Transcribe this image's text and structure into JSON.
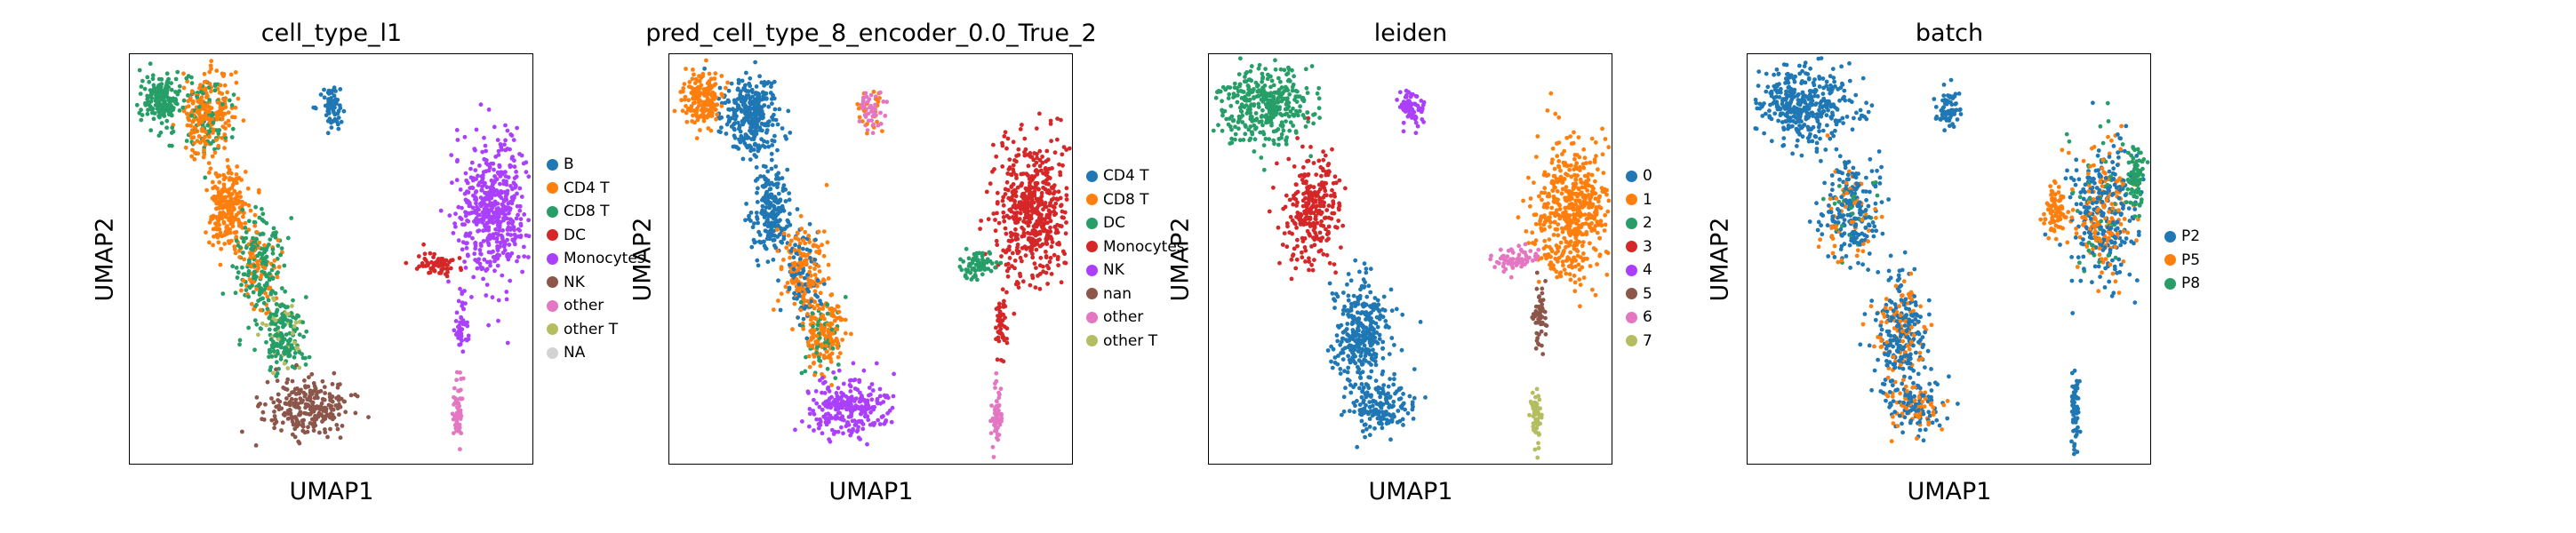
{
  "chart_data": [
    {
      "type": "scatter",
      "title": "cell_type_l1",
      "xlabel": "UMAP1",
      "ylabel": "UMAP2",
      "legend_placement": "right",
      "legend": [
        {
          "label": "B",
          "color": "#1f77b4"
        },
        {
          "label": "CD4 T",
          "color": "#ff7f0e"
        },
        {
          "label": "CD8 T",
          "color": "#279e68"
        },
        {
          "label": "DC",
          "color": "#d62728"
        },
        {
          "label": "Monocytes",
          "color": "#aa40fc"
        },
        {
          "label": "NK",
          "color": "#8c564b"
        },
        {
          "label": "other",
          "color": "#e377c2"
        },
        {
          "label": "other T",
          "color": "#b5bd61"
        },
        {
          "label": "NA",
          "color": "#d3d3d3"
        }
      ],
      "clusters": [
        {
          "cat": 1,
          "cx": 0.19,
          "cy": 0.15,
          "rx": 0.06,
          "ry": 0.1,
          "n": 320,
          "mix": [
            [
              0,
              2,
              0.25
            ]
          ]
        },
        {
          "cat": 2,
          "cx": 0.08,
          "cy": 0.11,
          "rx": 0.05,
          "ry": 0.06,
          "n": 180
        },
        {
          "cat": 1,
          "cx": 0.24,
          "cy": 0.38,
          "rx": 0.05,
          "ry": 0.1,
          "n": 220
        },
        {
          "cat": 2,
          "cx": 0.32,
          "cy": 0.52,
          "rx": 0.06,
          "ry": 0.12,
          "n": 240,
          "mix": [
            [
              0,
              1,
              0.3
            ]
          ]
        },
        {
          "cat": 2,
          "cx": 0.38,
          "cy": 0.68,
          "rx": 0.05,
          "ry": 0.09,
          "n": 200,
          "mix": [
            [
              0,
              7,
              0.2
            ]
          ]
        },
        {
          "cat": 5,
          "cx": 0.44,
          "cy": 0.86,
          "rx": 0.1,
          "ry": 0.07,
          "n": 260
        },
        {
          "cat": 0,
          "cx": 0.5,
          "cy": 0.13,
          "rx": 0.03,
          "ry": 0.05,
          "n": 70
        },
        {
          "cat": 4,
          "cx": 0.9,
          "cy": 0.38,
          "rx": 0.09,
          "ry": 0.17,
          "n": 520
        },
        {
          "cat": 3,
          "cx": 0.76,
          "cy": 0.51,
          "rx": 0.05,
          "ry": 0.03,
          "n": 70
        },
        {
          "cat": 6,
          "cx": 0.81,
          "cy": 0.88,
          "rx": 0.012,
          "ry": 0.08,
          "n": 60
        },
        {
          "cat": 4,
          "cx": 0.82,
          "cy": 0.66,
          "rx": 0.015,
          "ry": 0.08,
          "n": 50
        }
      ]
    },
    {
      "type": "scatter",
      "title": "pred_cell_type_8_encoder_0.0_True_2",
      "xlabel": "UMAP1",
      "ylabel": "UMAP2",
      "legend_placement": "right",
      "legend": [
        {
          "label": "CD4 T",
          "color": "#1f77b4"
        },
        {
          "label": "CD8 T",
          "color": "#ff7f0e"
        },
        {
          "label": "DC",
          "color": "#279e68"
        },
        {
          "label": "Monocytes",
          "color": "#d62728"
        },
        {
          "label": "NK",
          "color": "#aa40fc"
        },
        {
          "label": "nan",
          "color": "#8c564b"
        },
        {
          "label": "other",
          "color": "#e377c2"
        },
        {
          "label": "other T",
          "color": "#b5bd61"
        }
      ],
      "clusters": [
        {
          "cat": 0,
          "cx": 0.2,
          "cy": 0.15,
          "rx": 0.07,
          "ry": 0.1,
          "n": 320
        },
        {
          "cat": 1,
          "cx": 0.08,
          "cy": 0.11,
          "rx": 0.05,
          "ry": 0.06,
          "n": 180
        },
        {
          "cat": 0,
          "cx": 0.25,
          "cy": 0.38,
          "rx": 0.05,
          "ry": 0.1,
          "n": 220
        },
        {
          "cat": 1,
          "cx": 0.33,
          "cy": 0.53,
          "rx": 0.06,
          "ry": 0.12,
          "n": 240,
          "mix": [
            [
              0,
              0,
              0.3
            ]
          ]
        },
        {
          "cat": 1,
          "cx": 0.38,
          "cy": 0.68,
          "rx": 0.05,
          "ry": 0.09,
          "n": 200,
          "mix": [
            [
              0,
              2,
              0.2
            ]
          ]
        },
        {
          "cat": 4,
          "cx": 0.44,
          "cy": 0.86,
          "rx": 0.1,
          "ry": 0.07,
          "n": 260
        },
        {
          "cat": 6,
          "cx": 0.5,
          "cy": 0.13,
          "rx": 0.03,
          "ry": 0.05,
          "n": 70,
          "mix": [
            [
              0,
              1,
              0.4
            ]
          ]
        },
        {
          "cat": 3,
          "cx": 0.9,
          "cy": 0.38,
          "rx": 0.09,
          "ry": 0.17,
          "n": 520
        },
        {
          "cat": 2,
          "cx": 0.76,
          "cy": 0.51,
          "rx": 0.05,
          "ry": 0.03,
          "n": 70
        },
        {
          "cat": 6,
          "cx": 0.81,
          "cy": 0.88,
          "rx": 0.012,
          "ry": 0.08,
          "n": 60
        },
        {
          "cat": 3,
          "cx": 0.82,
          "cy": 0.66,
          "rx": 0.015,
          "ry": 0.08,
          "n": 50
        }
      ]
    },
    {
      "type": "scatter",
      "title": "leiden",
      "xlabel": "UMAP1",
      "ylabel": "UMAP2",
      "legend_placement": "right",
      "legend": [
        {
          "label": "0",
          "color": "#1f77b4"
        },
        {
          "label": "1",
          "color": "#ff7f0e"
        },
        {
          "label": "2",
          "color": "#279e68"
        },
        {
          "label": "3",
          "color": "#d62728"
        },
        {
          "label": "4",
          "color": "#aa40fc"
        },
        {
          "label": "5",
          "color": "#8c564b"
        },
        {
          "label": "6",
          "color": "#e377c2"
        },
        {
          "label": "7",
          "color": "#b5bd61"
        }
      ],
      "clusters": [
        {
          "cat": 2,
          "cx": 0.14,
          "cy": 0.12,
          "rx": 0.12,
          "ry": 0.1,
          "n": 380
        },
        {
          "cat": 3,
          "cx": 0.25,
          "cy": 0.38,
          "rx": 0.07,
          "ry": 0.13,
          "n": 280
        },
        {
          "cat": 0,
          "cx": 0.38,
          "cy": 0.68,
          "rx": 0.07,
          "ry": 0.14,
          "n": 320
        },
        {
          "cat": 0,
          "cx": 0.42,
          "cy": 0.86,
          "rx": 0.08,
          "ry": 0.06,
          "n": 160
        },
        {
          "cat": 4,
          "cx": 0.5,
          "cy": 0.13,
          "rx": 0.03,
          "ry": 0.05,
          "n": 70
        },
        {
          "cat": 1,
          "cx": 0.9,
          "cy": 0.38,
          "rx": 0.09,
          "ry": 0.17,
          "n": 520
        },
        {
          "cat": 6,
          "cx": 0.76,
          "cy": 0.5,
          "rx": 0.05,
          "ry": 0.03,
          "n": 70
        },
        {
          "cat": 5,
          "cx": 0.82,
          "cy": 0.64,
          "rx": 0.015,
          "ry": 0.08,
          "n": 60
        },
        {
          "cat": 7,
          "cx": 0.81,
          "cy": 0.88,
          "rx": 0.012,
          "ry": 0.08,
          "n": 60
        }
      ]
    },
    {
      "type": "scatter",
      "title": "batch",
      "xlabel": "UMAP1",
      "ylabel": "UMAP2",
      "legend_placement": "right",
      "legend": [
        {
          "label": "P2",
          "color": "#1f77b4"
        },
        {
          "label": "P5",
          "color": "#ff7f0e"
        },
        {
          "label": "P8",
          "color": "#279e68"
        }
      ],
      "clusters": [
        {
          "cat": 0,
          "cx": 0.14,
          "cy": 0.12,
          "rx": 0.12,
          "ry": 0.1,
          "n": 380
        },
        {
          "cat": 0,
          "cx": 0.25,
          "cy": 0.38,
          "rx": 0.07,
          "ry": 0.13,
          "n": 280,
          "mix": [
            [
              0,
              1,
              0.2
            ],
            [
              0,
              2,
              0.1
            ]
          ]
        },
        {
          "cat": 0,
          "cx": 0.38,
          "cy": 0.68,
          "rx": 0.07,
          "ry": 0.14,
          "n": 320,
          "mix": [
            [
              0,
              1,
              0.25
            ]
          ]
        },
        {
          "cat": 0,
          "cx": 0.42,
          "cy": 0.86,
          "rx": 0.08,
          "ry": 0.06,
          "n": 160,
          "mix": [
            [
              0,
              1,
              0.4
            ]
          ]
        },
        {
          "cat": 0,
          "cx": 0.5,
          "cy": 0.13,
          "rx": 0.03,
          "ry": 0.05,
          "n": 70
        },
        {
          "cat": 0,
          "cx": 0.88,
          "cy": 0.38,
          "rx": 0.08,
          "ry": 0.17,
          "n": 460,
          "mix": [
            [
              0,
              1,
              0.35
            ],
            [
              0,
              2,
              0.1
            ]
          ]
        },
        {
          "cat": 2,
          "cx": 0.96,
          "cy": 0.3,
          "rx": 0.02,
          "ry": 0.08,
          "n": 80
        },
        {
          "cat": 1,
          "cx": 0.76,
          "cy": 0.38,
          "rx": 0.03,
          "ry": 0.07,
          "n": 80
        },
        {
          "cat": 0,
          "cx": 0.81,
          "cy": 0.86,
          "rx": 0.012,
          "ry": 0.09,
          "n": 60
        }
      ]
    }
  ]
}
